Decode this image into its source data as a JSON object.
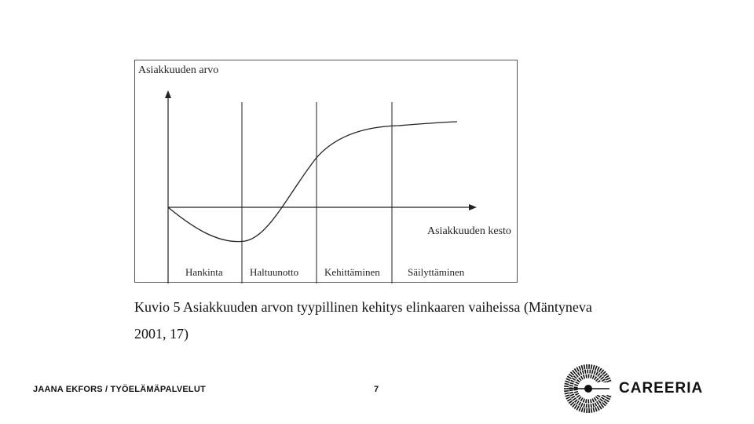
{
  "figure": {
    "y_axis_label": "Asiakkuuden arvo",
    "x_axis_label": "Asiakkuuden kesto",
    "phases": [
      "Hankinta",
      "Haltuunotto",
      "Kehittäminen",
      "Säilyttäminen"
    ]
  },
  "caption": {
    "line1": "Kuvio 5 Asiakkuuden arvon tyypillinen kehitys elinkaaren vaiheissa (Mäntyneva",
    "line2": "2001, 17)"
  },
  "footer": {
    "author": "JAANA EKFORS / TYÖELÄMÄPALVELUT",
    "page_number": "7"
  },
  "logo": {
    "text": "CAREERIA",
    "icon": "careeria-logo-icon"
  }
}
